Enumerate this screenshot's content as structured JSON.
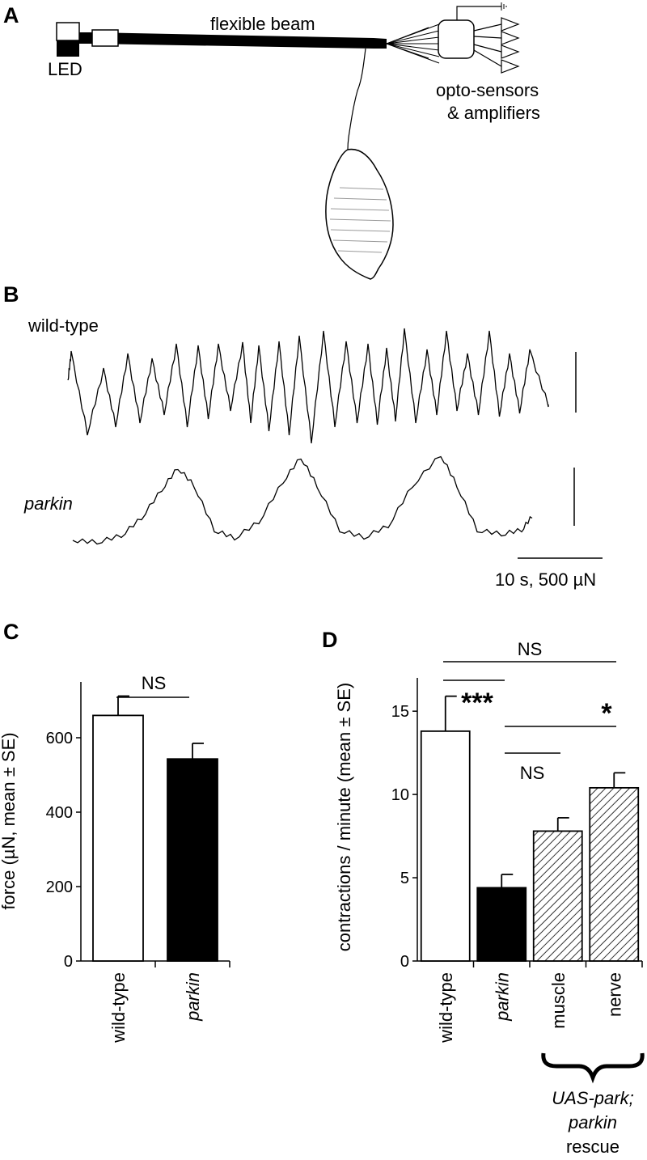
{
  "panels": {
    "a": "A",
    "b": "B",
    "c": "C",
    "d": "D"
  },
  "panel_a": {
    "beam_label": "flexible beam",
    "led_label": "LED",
    "sensor_label_line1": "opto-sensors",
    "sensor_label_line2": "& amplifiers"
  },
  "panel_b": {
    "trace1_label": "wild-type",
    "trace2_label": "parkin",
    "scale_label": "10 s, 500 µN"
  },
  "chart_data": [
    {
      "type": "bar",
      "panel": "C",
      "categories": [
        "wild-type",
        "parkin"
      ],
      "values": [
        660,
        543
      ],
      "errors": [
        52,
        42
      ],
      "ylabel": "force (µN, mean ± SE)",
      "ylim": [
        0,
        750
      ],
      "yticks": [
        0,
        200,
        400,
        600
      ],
      "bar_fills": [
        "white",
        "black"
      ],
      "significance": [
        {
          "from": 0,
          "to": 1,
          "label": "NS"
        }
      ]
    },
    {
      "type": "bar",
      "panel": "D",
      "categories": [
        "wild-type",
        "parkin",
        "muscle",
        "nerve"
      ],
      "values": [
        13.8,
        4.4,
        7.8,
        10.4
      ],
      "errors": [
        2.1,
        0.8,
        0.8,
        0.9
      ],
      "ylabel": "contractions / minute (mean ± SE)",
      "ylim": [
        0,
        17
      ],
      "yticks": [
        0,
        5,
        10,
        15
      ],
      "bar_fills": [
        "white",
        "black",
        "hatched",
        "hatched"
      ],
      "significance": [
        {
          "from": 0,
          "to": 3,
          "label": "NS"
        },
        {
          "from": 0,
          "to": 1,
          "label": "***"
        },
        {
          "from": 1,
          "to": 3,
          "label": "*"
        },
        {
          "from": 1,
          "to": 2,
          "label": "NS"
        }
      ],
      "group_label": {
        "line1": "UAS-park;",
        "line2": "parkin",
        "line3": "rescue"
      }
    }
  ]
}
